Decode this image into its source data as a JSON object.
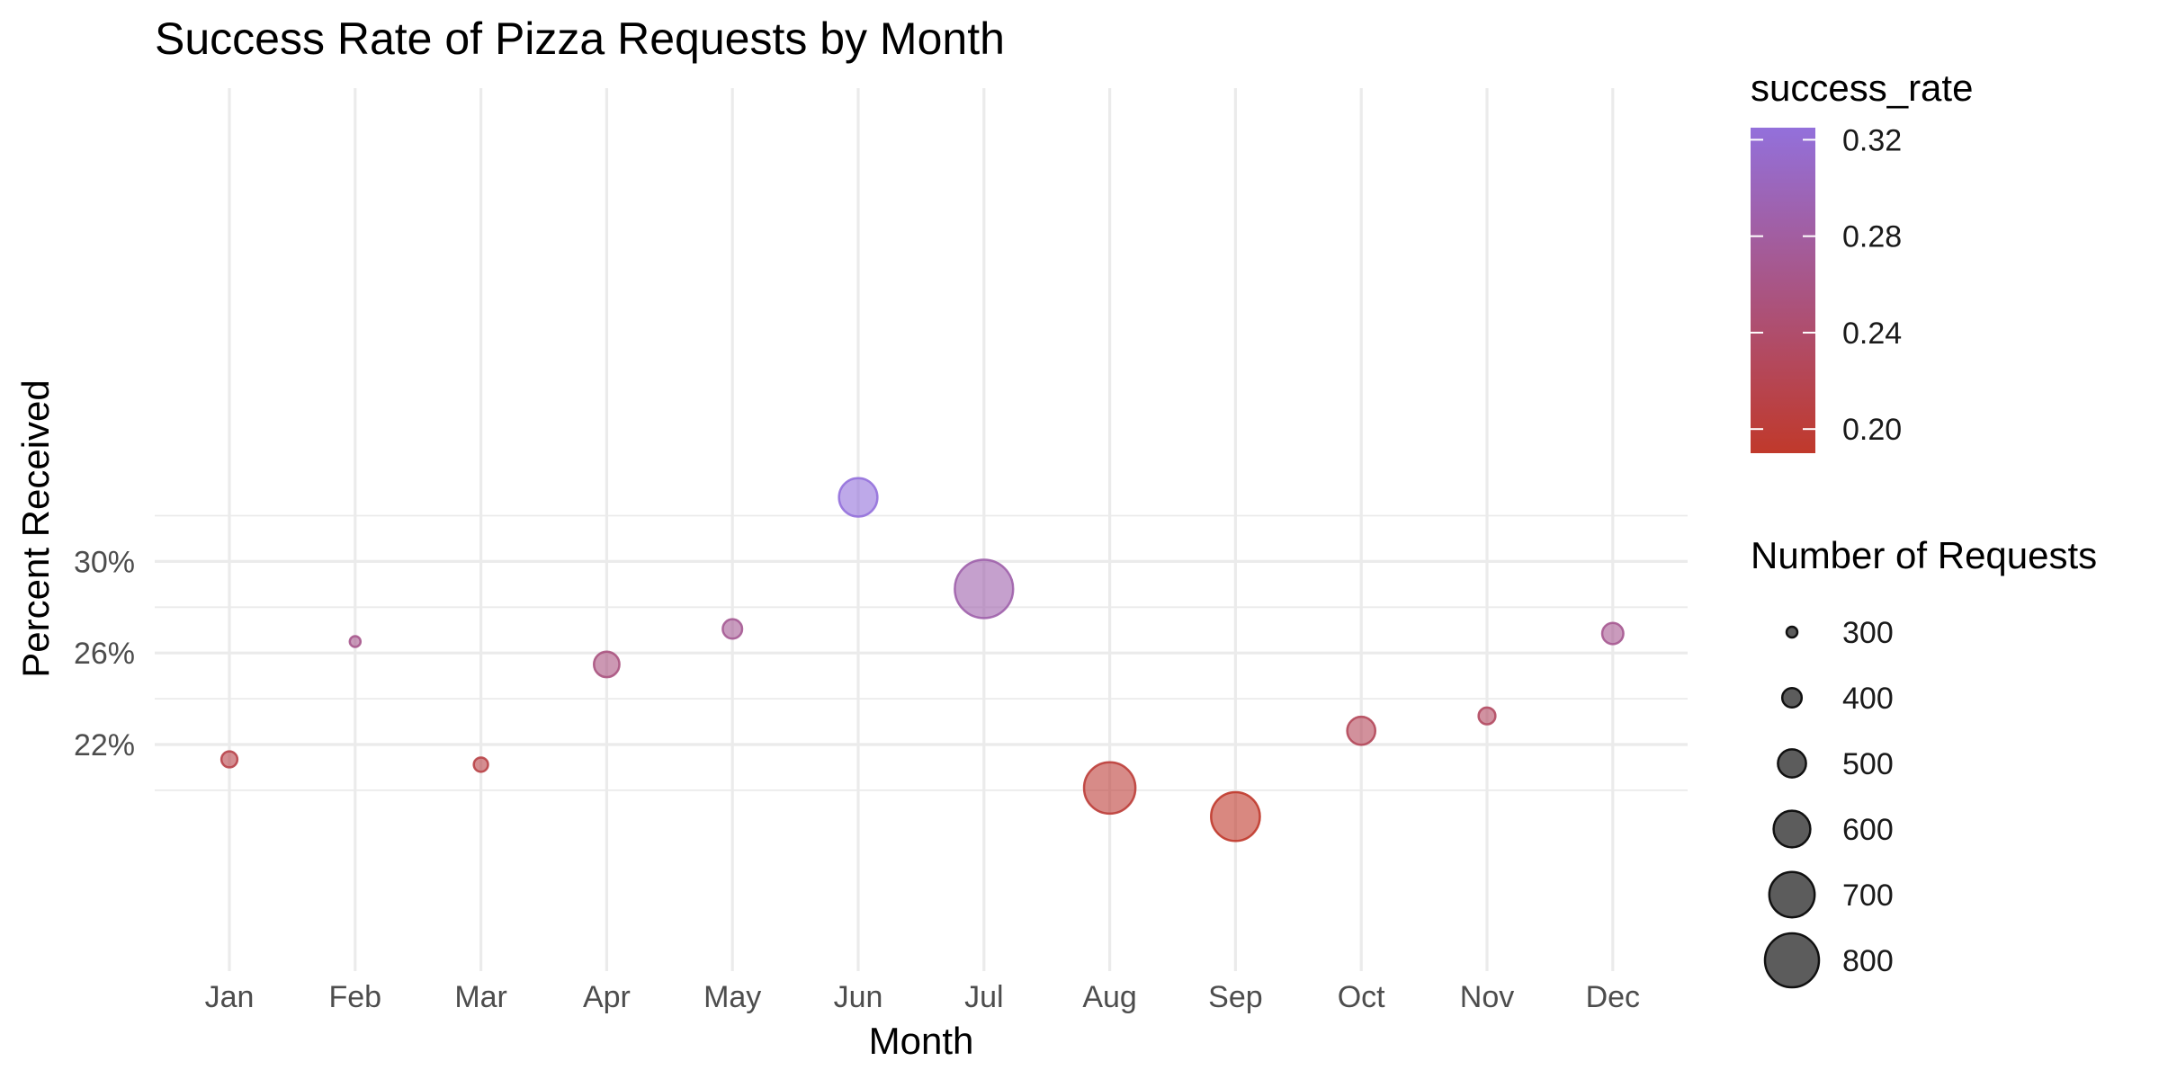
{
  "chart_data": {
    "type": "scatter",
    "title": "Success Rate of Pizza Requests by Month",
    "xlabel": "Month",
    "ylabel": "Percent Received",
    "categories": [
      "Jan",
      "Feb",
      "Mar",
      "Apr",
      "May",
      "Jun",
      "Jul",
      "Aug",
      "Sep",
      "Oct",
      "Nov",
      "Dec"
    ],
    "points": [
      {
        "month": "Jan",
        "success_rate": 0.2135,
        "requests": 360
      },
      {
        "month": "Feb",
        "success_rate": 0.265,
        "requests": 300
      },
      {
        "month": "Mar",
        "success_rate": 0.2112,
        "requests": 340
      },
      {
        "month": "Apr",
        "success_rate": 0.255,
        "requests": 470
      },
      {
        "month": "May",
        "success_rate": 0.2705,
        "requests": 400
      },
      {
        "month": "Jun",
        "success_rate": 0.328,
        "requests": 620
      },
      {
        "month": "Jul",
        "success_rate": 0.288,
        "requests": 850
      },
      {
        "month": "Aug",
        "success_rate": 0.201,
        "requests": 770
      },
      {
        "month": "Sep",
        "success_rate": 0.1885,
        "requests": 740
      },
      {
        "month": "Oct",
        "success_rate": 0.226,
        "requests": 500
      },
      {
        "month": "Nov",
        "success_rate": 0.2325,
        "requests": 370
      },
      {
        "month": "Dec",
        "success_rate": 0.2685,
        "requests": 420
      }
    ],
    "ylim": [
      0.18,
      0.335
    ],
    "y_major_ticks": [
      0.22,
      0.26,
      0.3
    ],
    "y_tick_labels": [
      "22%",
      "26%",
      "30%"
    ],
    "y_minor_ticks": [
      0.2,
      0.24,
      0.28,
      0.32
    ],
    "grid": true,
    "point_alpha": 0.6,
    "color_legend": {
      "title": "success_rate",
      "range": [
        0.19,
        0.325
      ],
      "breaks": [
        0.32,
        0.28,
        0.24,
        0.2
      ],
      "labels": [
        "0.32",
        "0.28",
        "0.24",
        "0.20"
      ],
      "low_color": "#c0392b",
      "high_color": "#9370db"
    },
    "size_legend": {
      "title": "Number of Requests",
      "breaks": [
        300,
        400,
        500,
        600,
        700,
        800
      ],
      "labels": [
        "300",
        "400",
        "500",
        "600",
        "700",
        "800"
      ]
    },
    "legend_position": "right"
  }
}
